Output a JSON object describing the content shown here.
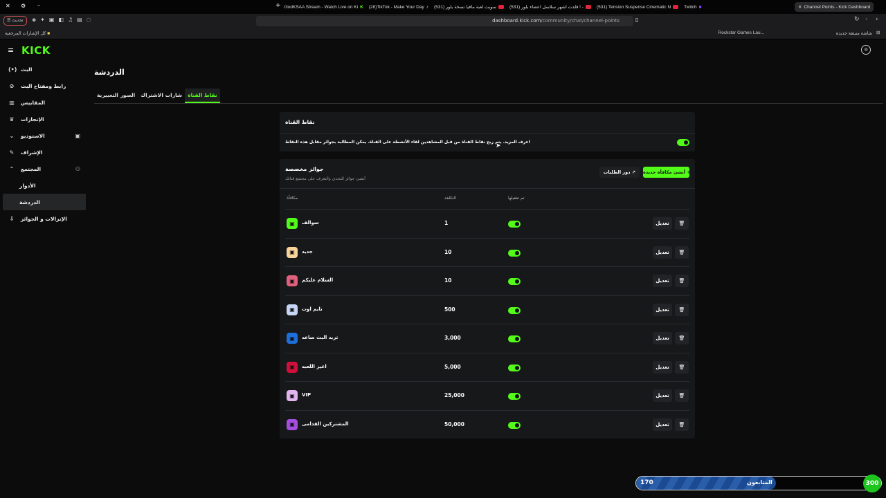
{
  "browser": {
    "tabs": [
      {
        "label": "r3odKSAA Stream - Watch Live on Ki"
      },
      {
        "label": "(28)TikTok - Make Your Day"
      },
      {
        "label": "(531) سويت لعبة مافيا نسخة بلور"
      },
      {
        "label": "(531) قلدت اشهر سلاسل اعضاء بلور ! -"
      },
      {
        "label": "(531) Tension Suspense Cinematic N"
      },
      {
        "label": "Twitch"
      },
      {
        "label": "Channel Points - Kick Dashboard",
        "active": true
      }
    ],
    "url_host": "dashboard.kick.com",
    "url_path": "/community/chat/channel-points",
    "update_label": "تحديث",
    "bookmarks_all": "كل الإشارات المرجعية",
    "bookmark_1": "Rockstar Games Lau...",
    "bookmark_2": "شاشة منبثقة جديدة"
  },
  "brand": {
    "logo": "KICK",
    "accent": "#53fc18"
  },
  "sidebar": {
    "items": [
      {
        "label": "البث",
        "icon": "broadcast-icon"
      },
      {
        "label": "رابط ومفتاح البث",
        "icon": "link-icon"
      },
      {
        "label": "المقاييس",
        "icon": "chart-icon"
      },
      {
        "label": "الإنجازات",
        "icon": "trophy-icon"
      },
      {
        "label": "الاستوديو",
        "icon": "chevron-down-icon"
      },
      {
        "label": "الإشراف",
        "icon": "wrench-icon"
      },
      {
        "label": "المجتمع",
        "icon": "chevron-up-icon"
      },
      {
        "label": "الأدوار"
      },
      {
        "label": "الدردشة",
        "selected": true
      },
      {
        "label": "الإنزالات و الجوائز",
        "icon": "drops-icon"
      }
    ]
  },
  "page": {
    "title": "الدردشة",
    "tabs": [
      "نقاط القناة",
      "شارات الاشتراك",
      "الصور التعبيرية"
    ]
  },
  "channel_points": {
    "title": "نقاط القناة",
    "description": "اعرف المزيد. يتم ربح نقاط القناة من قبل المشاهدين لقاء الأنشطة على القناة. يمكن المطالبة بجوائز مقابل هذه النقاط",
    "enabled": true
  },
  "rewards": {
    "title": "جوائز مخصصة",
    "subtitle": "أنشئ جوائز للتحدي والتعرف على مجتمع قناتك",
    "create_label": "أنشئ مكافأة جديدة",
    "queue_label": "دور الطلبات",
    "columns": [
      "مكافأة",
      "التكلفة",
      "تم تفعيلها"
    ],
    "edit_label": "تعديل",
    "items": [
      {
        "name": "سوالف",
        "cost": "1",
        "color": "#53fc18",
        "enabled": true
      },
      {
        "name": "جديد",
        "cost": "10",
        "color": "#f8d39a",
        "enabled": true
      },
      {
        "name": "السلام عليكم",
        "cost": "10",
        "color": "#e0607e",
        "enabled": true
      },
      {
        "name": "تايم اوت",
        "cost": "500",
        "color": "#c7d6f5",
        "enabled": true
      },
      {
        "name": "تزيد البث ساعه",
        "cost": "3,000",
        "color": "#1e6fdc",
        "enabled": true
      },
      {
        "name": "اغير اللعبه",
        "cost": "5,000",
        "color": "#d0103a",
        "enabled": true
      },
      {
        "name": "VIP",
        "cost": "25,000",
        "color": "#e2b5f0",
        "enabled": true
      },
      {
        "name": "المشتركين القدامى",
        "cost": "50,000",
        "color": "#a64ee0",
        "enabled": true
      }
    ]
  },
  "followers_goal": {
    "label": "المتابعون",
    "current": "170",
    "target": "300",
    "progress": 0.57
  }
}
